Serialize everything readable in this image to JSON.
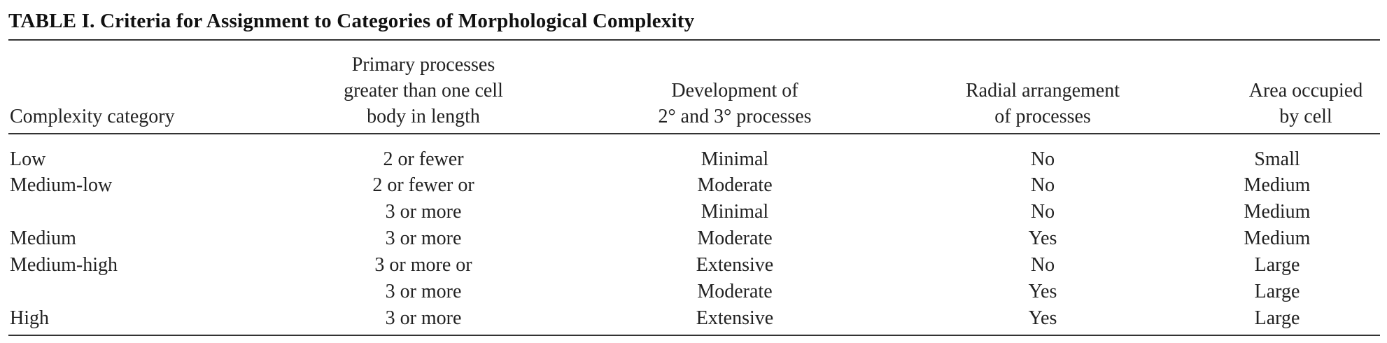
{
  "table": {
    "title": "TABLE I.  Criteria for Assignment to Categories of Morphological Complexity",
    "headers": [
      [
        "Complexity category"
      ],
      [
        "Primary processes",
        "greater than one cell",
        "body in length"
      ],
      [
        "Development of",
        "2° and 3° processes"
      ],
      [
        "Radial arrangement",
        "of processes"
      ],
      [
        "Area occupied",
        "by cell"
      ]
    ],
    "rows": [
      [
        "Low",
        "2 or fewer",
        "Minimal",
        "No",
        "Small"
      ],
      [
        "Medium-low",
        "2 or fewer or",
        "Moderate",
        "No",
        "Medium"
      ],
      [
        "",
        "3 or more",
        "Minimal",
        "No",
        "Medium"
      ],
      [
        "Medium",
        "3 or more",
        "Moderate",
        "Yes",
        "Medium"
      ],
      [
        "Medium-high",
        "3 or more or",
        "Extensive",
        "No",
        "Large"
      ],
      [
        "",
        "3 or more",
        "Moderate",
        "Yes",
        "Large"
      ],
      [
        "High",
        "3 or more",
        "Extensive",
        "Yes",
        "Large"
      ]
    ]
  }
}
